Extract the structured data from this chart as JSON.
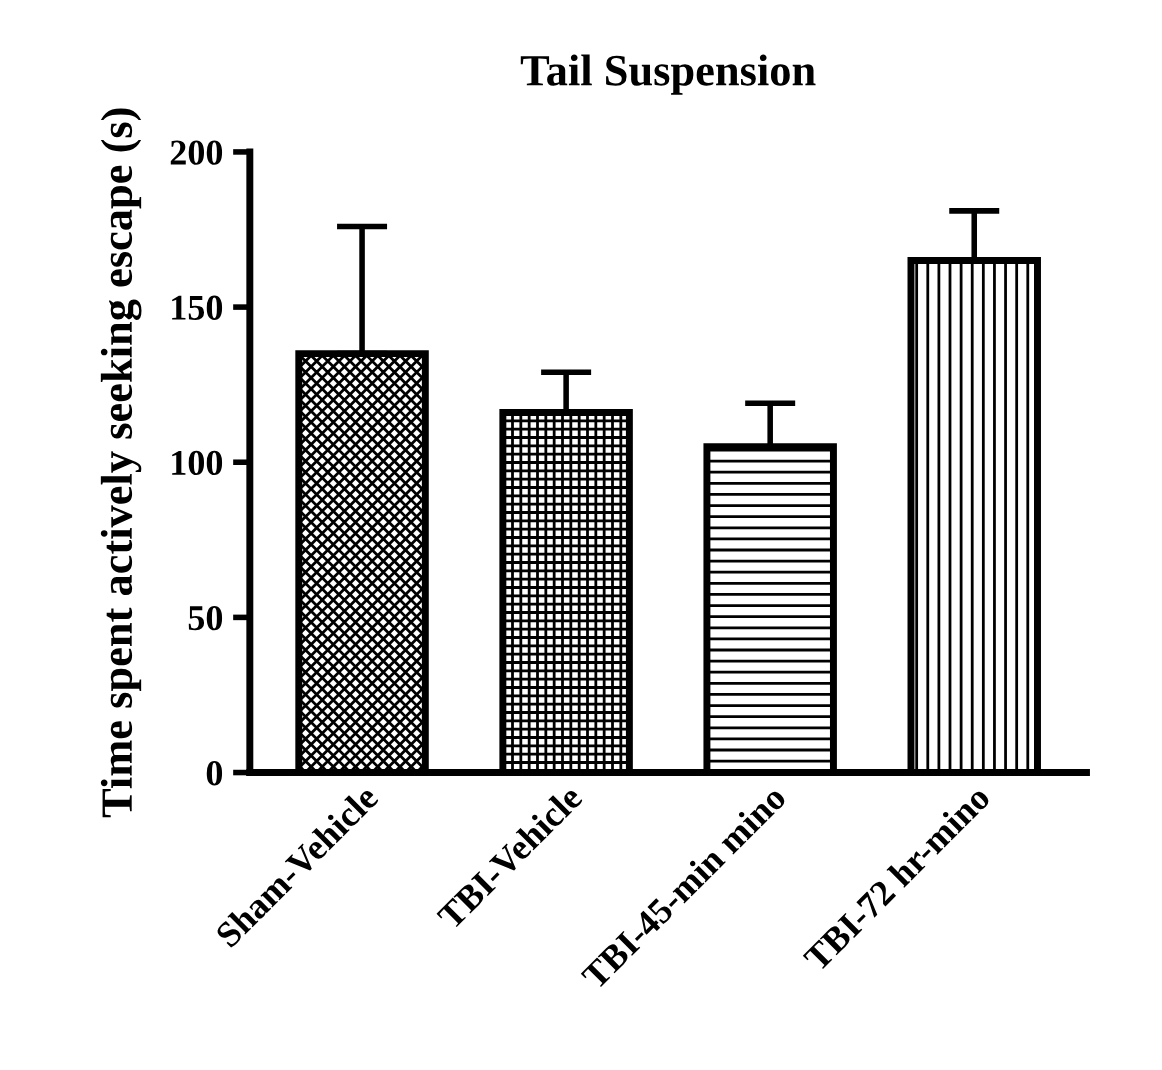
{
  "chart_data": {
    "type": "bar",
    "title": "Tail Suspension",
    "ylabel": "Time spent actively seeking escape (s)",
    "categories": [
      "Sham-Vehicle",
      "TBI-Vehicle",
      "TBI-45-min mino",
      "TBI-72 hr-mino"
    ],
    "values": [
      135,
      116,
      105,
      165
    ],
    "errors": [
      [
        135,
        176
      ],
      [
        116,
        129
      ],
      [
        105,
        119
      ],
      [
        165,
        181
      ]
    ],
    "colors": [
      "#000000",
      "#000000",
      "#000000",
      "#000000"
    ],
    "ylim": [
      0,
      200
    ],
    "yticks": [
      0,
      50,
      100,
      150,
      200
    ],
    "grid": false,
    "legend": false
  }
}
